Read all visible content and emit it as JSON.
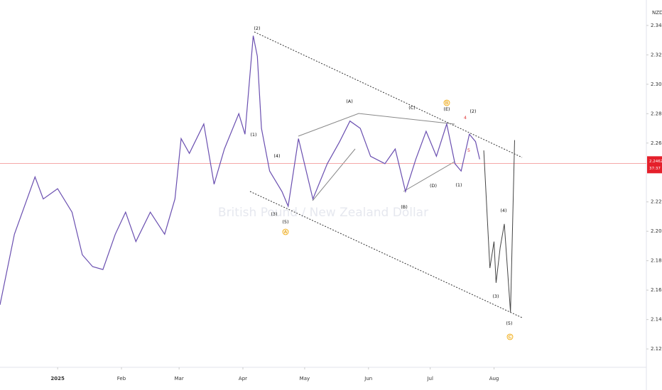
{
  "chart_data": {
    "type": "line",
    "y_unit_label": "NZD",
    "watermark": "British Pound / New Zealand Dollar",
    "xlim": [
      -28,
      286
    ],
    "xticks": [
      {
        "value": 0,
        "label": "2025"
      },
      {
        "value": 31,
        "label": "Feb"
      },
      {
        "value": 59,
        "label": "Mar"
      },
      {
        "value": 90,
        "label": "Apr"
      },
      {
        "value": 120,
        "label": "May"
      },
      {
        "value": 151,
        "label": "Jun"
      },
      {
        "value": 181,
        "label": "Jul"
      },
      {
        "value": 212,
        "label": "Aug"
      }
    ],
    "ylim": [
      2.1075,
      2.3573
    ],
    "yticks": [
      {
        "value": 2.12,
        "label": "2.12000"
      },
      {
        "value": 2.14,
        "label": "2.14000"
      },
      {
        "value": 2.16,
        "label": "2.16000"
      },
      {
        "value": 2.18,
        "label": "2.18000"
      },
      {
        "value": 2.2,
        "label": "2.20000"
      },
      {
        "value": 2.22,
        "label": "2.22000"
      },
      {
        "value": 2.26,
        "label": "2.26000"
      },
      {
        "value": 2.28,
        "label": "2.28000"
      },
      {
        "value": 2.3,
        "label": "2.30000"
      },
      {
        "value": 2.32,
        "label": "2.32000"
      },
      {
        "value": 2.34,
        "label": "2.34000"
      }
    ],
    "last_price": 2.24621,
    "countdown": "37:37",
    "series": [
      {
        "color": "#6a4fb0",
        "x": [
          -28,
          -21,
          -11,
          -7,
          0,
          7,
          12,
          17,
          22,
          28,
          33,
          38,
          45,
          52,
          57,
          60,
          64,
          71,
          76,
          81,
          88,
          91,
          95,
          97,
          99,
          103,
          109,
          112,
          117,
          124,
          131,
          137,
          142,
          147,
          152,
          159,
          164,
          169,
          174,
          179,
          184,
          189,
          193,
          196,
          200,
          203,
          205
        ],
        "values": [
          2.15,
          2.198,
          2.237,
          2.222,
          2.229,
          2.213,
          2.184,
          2.176,
          2.174,
          2.198,
          2.213,
          2.193,
          2.213,
          2.198,
          2.222,
          2.263,
          2.253,
          2.273,
          2.232,
          2.256,
          2.28,
          2.266,
          2.333,
          2.319,
          2.27,
          2.241,
          2.227,
          2.217,
          2.263,
          2.222,
          2.246,
          2.261,
          2.275,
          2.27,
          2.251,
          2.246,
          2.256,
          2.227,
          2.249,
          2.268,
          2.251,
          2.273,
          2.246,
          2.241,
          2.266,
          2.261,
          2.249
        ]
      },
      {
        "color": "#444444",
        "x": [
          207,
          210,
          212,
          213,
          215,
          217,
          220,
          222
        ],
        "values": [
          2.255,
          2.175,
          2.193,
          2.165,
          2.189,
          2.205,
          2.145,
          2.262
        ]
      }
    ],
    "annotations": [
      "(2)",
      "(1)",
      "(4)",
      "(3)",
      "(5)",
      "A",
      "(A)",
      "(B)",
      "(C)",
      "(D)",
      "B",
      "(E)",
      "(1)",
      "4",
      "5",
      "(2)",
      "(4)",
      "(3)",
      "(5)",
      "C"
    ]
  }
}
